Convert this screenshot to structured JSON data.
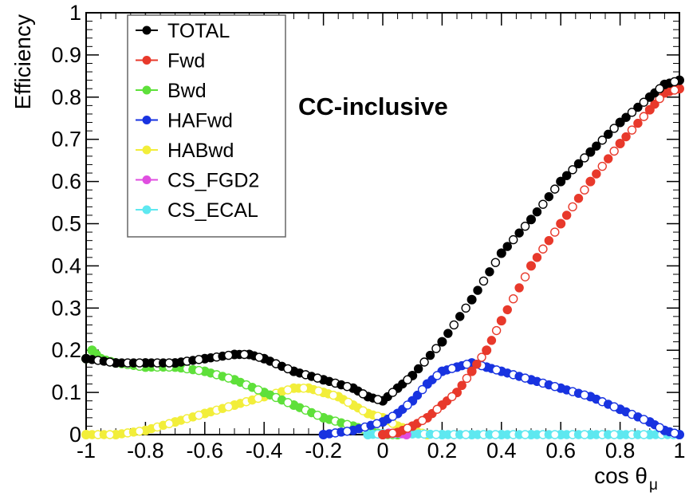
{
  "chart_data": {
    "type": "scatter",
    "title": "",
    "annotation": "CC-inclusive",
    "xlabel_main": "cos θ",
    "xlabel_sub": "μ",
    "ylabel": "Efficiency",
    "xlim": [
      -1,
      1
    ],
    "ylim": [
      0,
      1
    ],
    "xticks": [
      "-1",
      "-0.8",
      "-0.6",
      "-0.4",
      "-0.2",
      "0",
      "0.2",
      "0.4",
      "0.6",
      "0.8",
      "1"
    ],
    "yticks": [
      "0",
      "0.1",
      "0.2",
      "0.3",
      "0.4",
      "0.5",
      "0.6",
      "0.7",
      "0.8",
      "0.9",
      "1"
    ],
    "legend_position": "top-left",
    "series": [
      {
        "name": "TOTAL",
        "color": "#000000",
        "x": [
          -1.0,
          -0.9,
          -0.8,
          -0.7,
          -0.6,
          -0.5,
          -0.45,
          -0.4,
          -0.3,
          -0.2,
          -0.1,
          -0.05,
          0.0,
          0.05,
          0.1,
          0.2,
          0.3,
          0.4,
          0.5,
          0.6,
          0.7,
          0.8,
          0.9,
          0.95,
          1.0
        ],
        "y": [
          0.18,
          0.17,
          0.17,
          0.17,
          0.18,
          0.19,
          0.19,
          0.18,
          0.15,
          0.13,
          0.11,
          0.09,
          0.08,
          0.11,
          0.14,
          0.22,
          0.32,
          0.43,
          0.51,
          0.6,
          0.67,
          0.74,
          0.8,
          0.83,
          0.84
        ]
      },
      {
        "name": "Fwd",
        "color": "#e8392b",
        "x": [
          0.0,
          0.05,
          0.1,
          0.15,
          0.2,
          0.25,
          0.3,
          0.35,
          0.4,
          0.5,
          0.6,
          0.7,
          0.8,
          0.9,
          0.95,
          1.0
        ],
        "y": [
          0.0,
          0.005,
          0.02,
          0.04,
          0.07,
          0.1,
          0.15,
          0.2,
          0.27,
          0.4,
          0.5,
          0.6,
          0.69,
          0.77,
          0.81,
          0.82
        ]
      },
      {
        "name": "Bwd",
        "color": "#5ee03a",
        "x": [
          -1.0,
          -0.98,
          -0.95,
          -0.9,
          -0.8,
          -0.7,
          -0.6,
          -0.5,
          -0.4,
          -0.3,
          -0.2,
          -0.1,
          -0.05,
          0.0,
          0.05
        ],
        "y": [
          0.18,
          0.2,
          0.18,
          0.17,
          0.16,
          0.16,
          0.15,
          0.13,
          0.1,
          0.07,
          0.04,
          0.02,
          0.01,
          0.0,
          0.0
        ]
      },
      {
        "name": "HAFwd",
        "color": "#1833e0",
        "x": [
          -0.2,
          -0.1,
          0.0,
          0.05,
          0.1,
          0.15,
          0.2,
          0.25,
          0.3,
          0.35,
          0.4,
          0.5,
          0.6,
          0.7,
          0.8,
          0.9,
          0.95,
          1.0
        ],
        "y": [
          0.0,
          0.01,
          0.03,
          0.05,
          0.08,
          0.12,
          0.15,
          0.16,
          0.17,
          0.16,
          0.15,
          0.13,
          0.11,
          0.09,
          0.06,
          0.03,
          0.01,
          0.0
        ]
      },
      {
        "name": "HABwd",
        "color": "#f2ee3a",
        "x": [
          -1.0,
          -0.9,
          -0.8,
          -0.7,
          -0.6,
          -0.5,
          -0.4,
          -0.3,
          -0.25,
          -0.2,
          -0.15,
          -0.1,
          -0.05,
          0.0,
          0.05,
          0.1,
          0.15
        ],
        "y": [
          0.0,
          0.0,
          0.01,
          0.03,
          0.05,
          0.07,
          0.09,
          0.11,
          0.11,
          0.1,
          0.09,
          0.07,
          0.05,
          0.04,
          0.02,
          0.01,
          0.0
        ]
      },
      {
        "name": "CS_FGD2",
        "color": "#e04ee0",
        "x": [
          0.0,
          0.02,
          0.05,
          0.08
        ],
        "y": [
          0.0,
          0.003,
          0.004,
          0.0
        ]
      },
      {
        "name": "CS_ECAL",
        "color": "#5ee8f0",
        "x": [
          -0.05,
          0.0,
          0.1,
          0.2,
          0.3,
          0.4,
          0.5,
          0.6,
          0.7,
          0.8,
          0.9,
          1.0
        ],
        "y": [
          0.0,
          0.002,
          0.002,
          0.0,
          0.0,
          0.0,
          0.0,
          0.0,
          0.0,
          0.0,
          0.0,
          0.0
        ]
      }
    ]
  }
}
